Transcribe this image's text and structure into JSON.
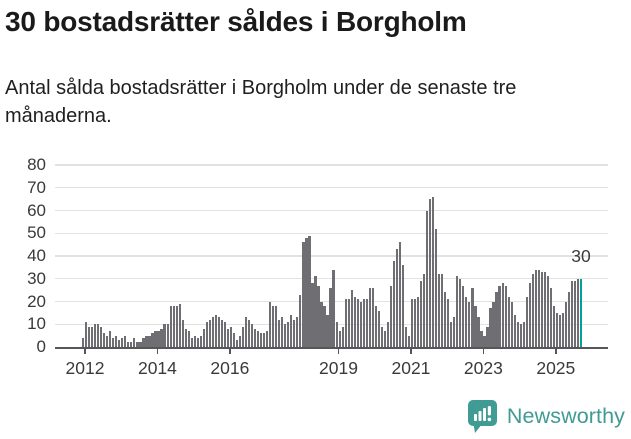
{
  "header": {
    "title": "30 bostadsrätter såldes i Borgholm",
    "subtitle": "Antal sålda bostadsrätter i Borgholm under de senaste tre månaderna."
  },
  "chart_data": {
    "type": "bar",
    "title": "30 bostadsrätter såldes i Borgholm",
    "subtitle": "Antal sålda bostadsrätter i Borgholm under de senaste tre månaderna.",
    "ylabel": "",
    "xlabel": "",
    "ylim": [
      0,
      80
    ],
    "grid": true,
    "y_ticks": [
      0,
      10,
      20,
      30,
      40,
      50,
      60,
      70,
      80
    ],
    "x_tick_years": [
      "2012",
      "2014",
      "2016",
      "2019",
      "2021",
      "2023",
      "2025"
    ],
    "start_month": "2011-12",
    "end_month": "2025-09",
    "values": [
      4,
      11,
      9,
      9,
      10,
      10,
      9,
      6,
      5,
      7,
      4,
      5,
      3,
      4,
      5,
      2,
      2,
      4,
      2,
      2,
      4,
      5,
      5,
      6,
      7,
      7,
      8,
      10,
      10,
      18,
      18,
      18,
      19,
      12,
      8,
      7,
      4,
      5,
      4,
      5,
      8,
      11,
      12,
      13,
      14,
      13,
      12,
      11,
      8,
      9,
      6,
      3,
      5,
      9,
      13,
      12,
      10,
      8,
      7,
      6,
      6,
      7,
      20,
      18,
      18,
      12,
      13,
      10,
      11,
      14,
      12,
      13,
      23,
      46,
      48,
      49,
      28,
      31,
      27,
      20,
      18,
      14,
      26,
      34,
      11,
      7,
      9,
      21,
      21,
      25,
      22,
      21,
      20,
      21,
      21,
      26,
      26,
      18,
      16,
      9,
      7,
      11,
      27,
      38,
      43,
      46,
      36,
      9,
      5,
      21,
      21,
      22,
      29,
      32,
      60,
      65,
      66,
      52,
      32,
      32,
      24,
      21,
      11,
      13,
      31,
      30,
      27,
      22,
      20,
      26,
      18,
      13,
      7,
      5,
      9,
      17,
      20,
      24,
      27,
      28,
      27,
      22,
      20,
      14,
      11,
      10,
      11,
      22,
      28,
      32,
      34,
      34,
      33,
      33,
      31,
      26,
      18,
      15,
      14,
      15,
      20,
      24,
      29,
      29,
      30,
      30
    ],
    "highlight_last": true,
    "annotation": {
      "text": "30",
      "target": "last-bar"
    },
    "bar_color": "#6e6e73",
    "highlight_color": "#00a19a",
    "axis_color": "#55565a",
    "grid_color": "#e2e2e2"
  },
  "footer": {
    "brand": "Newsworthy",
    "brand_color": "#3f9b93"
  }
}
